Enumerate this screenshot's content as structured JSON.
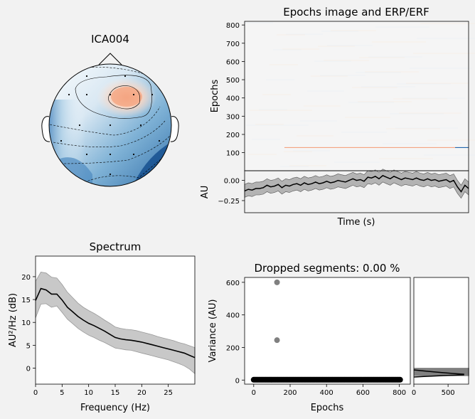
{
  "figure": {
    "background": "#f2f2f2"
  },
  "chart_data": [
    {
      "id": "topomap",
      "type": "heatmap",
      "title": "ICA004",
      "description_colors": {
        "positive": "#f4a582",
        "negative": "#2166ac",
        "neutral": "#f7f7f7"
      },
      "sensors": 16
    },
    {
      "id": "epochs-image",
      "type": "heatmap",
      "title": "Epochs image and ERP/ERF",
      "ylabel": "Epochs",
      "ylim": [
        1,
        820
      ],
      "yticks": [
        100,
        200,
        300,
        400,
        500,
        600,
        700,
        800
      ],
      "highlight_epoch": 128,
      "highlight_colors": {
        "positive": "#f4a582",
        "negative": "#2166ac"
      }
    },
    {
      "id": "erp",
      "type": "line",
      "xlabel": "Time (s)",
      "ylabel": "AU",
      "ylim": [
        -0.4,
        0.12
      ],
      "yticks": [
        0.0,
        -0.25
      ],
      "ytick_labels": [
        "0.00",
        "−0.25"
      ],
      "mean": [
        -0.13,
        -0.11,
        -0.12,
        -0.1,
        -0.1,
        -0.09,
        -0.06,
        -0.08,
        -0.07,
        -0.05,
        -0.09,
        -0.06,
        -0.07,
        -0.05,
        -0.04,
        -0.06,
        -0.03,
        -0.05,
        -0.04,
        -0.02,
        -0.04,
        -0.03,
        -0.01,
        -0.03,
        -0.02,
        0.0,
        -0.01,
        -0.02,
        0.0,
        0.02,
        0.0,
        0.01,
        -0.01,
        0.04,
        0.03,
        0.05,
        0.02,
        0.06,
        0.04,
        0.02,
        0.05,
        0.03,
        0.01,
        0.03,
        0.02,
        0.01,
        0.03,
        0.01,
        0.0,
        0.02,
        0.0,
        0.01,
        -0.01,
        0.0,
        0.01,
        -0.02,
        0.0,
        -0.08,
        -0.14,
        -0.06,
        -0.1
      ],
      "band": 0.08,
      "fill_color": "#b3b3b3",
      "line_color": "#000000"
    },
    {
      "id": "spectrum",
      "type": "line",
      "title": "Spectrum",
      "xlabel": "Frequency (Hz)",
      "ylabel": "AU²/Hz (dB)",
      "xlim": [
        0,
        30
      ],
      "ylim": [
        -3.5,
        24.5
      ],
      "xticks": [
        0,
        5,
        10,
        15,
        20,
        25
      ],
      "yticks": [
        0,
        5,
        10,
        15,
        20
      ],
      "x": [
        0,
        1,
        2,
        3,
        4,
        5,
        6,
        7,
        8,
        9,
        10,
        11,
        12,
        13,
        14,
        15,
        16,
        17,
        18,
        19,
        20,
        21,
        22,
        23,
        24,
        25,
        26,
        27,
        28,
        29,
        30
      ],
      "mean": [
        14.8,
        17.4,
        17.1,
        16.2,
        16.2,
        14.9,
        13.3,
        12.3,
        11.3,
        10.5,
        9.8,
        9.3,
        8.7,
        8.1,
        7.4,
        6.7,
        6.4,
        6.2,
        6.1,
        5.9,
        5.7,
        5.4,
        5.1,
        4.8,
        4.5,
        4.2,
        3.9,
        3.6,
        3.3,
        2.8,
        2.3
      ],
      "upper": [
        19.0,
        21.0,
        20.8,
        19.9,
        19.7,
        18.3,
        16.6,
        15.4,
        14.2,
        13.3,
        12.6,
        12.0,
        11.3,
        10.5,
        9.8,
        9.0,
        8.7,
        8.5,
        8.4,
        8.2,
        7.9,
        7.6,
        7.3,
        6.9,
        6.6,
        6.3,
        6.0,
        5.6,
        5.3,
        4.9,
        4.5
      ],
      "lower": [
        11.0,
        14.0,
        14.1,
        13.3,
        13.6,
        12.2,
        10.7,
        9.7,
        8.7,
        7.9,
        7.2,
        6.7,
        6.1,
        5.6,
        5.0,
        4.4,
        4.2,
        4.0,
        3.9,
        3.6,
        3.3,
        3.0,
        2.7,
        2.4,
        2.1,
        1.8,
        1.4,
        1.0,
        0.5,
        -0.2,
        -1.2
      ],
      "fill_color": "#c8c8c8",
      "line_color": "#000000"
    },
    {
      "id": "variance",
      "type": "scatter",
      "title": "Dropped segments: 0.00 %",
      "xlabel": "Epochs",
      "ylabel": "Variance (AU)",
      "xlim": [
        -50,
        860
      ],
      "ylim": [
        -25,
        630
      ],
      "xticks": [
        0,
        200,
        400,
        600,
        800
      ],
      "yticks": [
        0,
        200,
        400,
        600
      ],
      "n_epochs": 810,
      "baseline": 2,
      "outliers": [
        {
          "x": 128,
          "y": 600
        },
        {
          "x": 128,
          "y": 245
        }
      ],
      "point_color": "#000000",
      "outlier_color": "#808080"
    },
    {
      "id": "variance-hist",
      "type": "bar",
      "xticks": [
        0,
        500
      ],
      "xlim": [
        0,
        800
      ],
      "bar_value": 808,
      "bar_color": "#808080"
    }
  ]
}
